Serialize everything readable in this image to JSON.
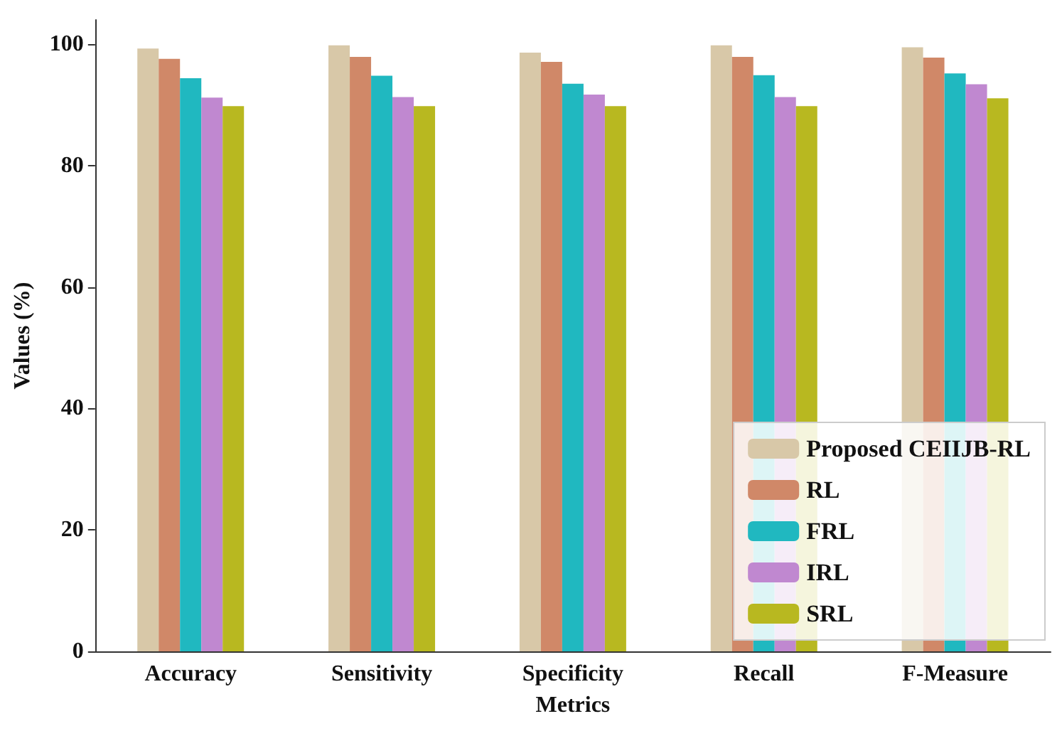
{
  "chart_data": {
    "type": "bar",
    "xlabel": "Metrics",
    "ylabel": "Values (%)",
    "categories": [
      "Accuracy",
      "Sensitivity",
      "Specificity",
      "Recall",
      "F-Measure"
    ],
    "series": [
      {
        "name": "Proposed CEIIJB-RL",
        "color": "#d8c8a8",
        "values": [
          99.3,
          99.8,
          98.6,
          99.8,
          99.5
        ]
      },
      {
        "name": "RL",
        "color": "#d08868",
        "values": [
          97.6,
          97.9,
          97.1,
          97.9,
          97.8
        ]
      },
      {
        "name": "FRL",
        "color": "#20b8c0",
        "values": [
          94.4,
          94.8,
          93.5,
          94.9,
          95.2
        ]
      },
      {
        "name": "IRL",
        "color": "#c088d0",
        "values": [
          91.2,
          91.3,
          91.7,
          91.3,
          93.4
        ]
      },
      {
        "name": "SRL",
        "color": "#b8b820",
        "values": [
          89.8,
          89.8,
          89.8,
          89.8,
          91.1
        ]
      }
    ],
    "ylim": [
      0,
      104
    ],
    "yticks": [
      0,
      20,
      40,
      60,
      80,
      100
    ],
    "grid": false,
    "legend": "bottom right"
  }
}
